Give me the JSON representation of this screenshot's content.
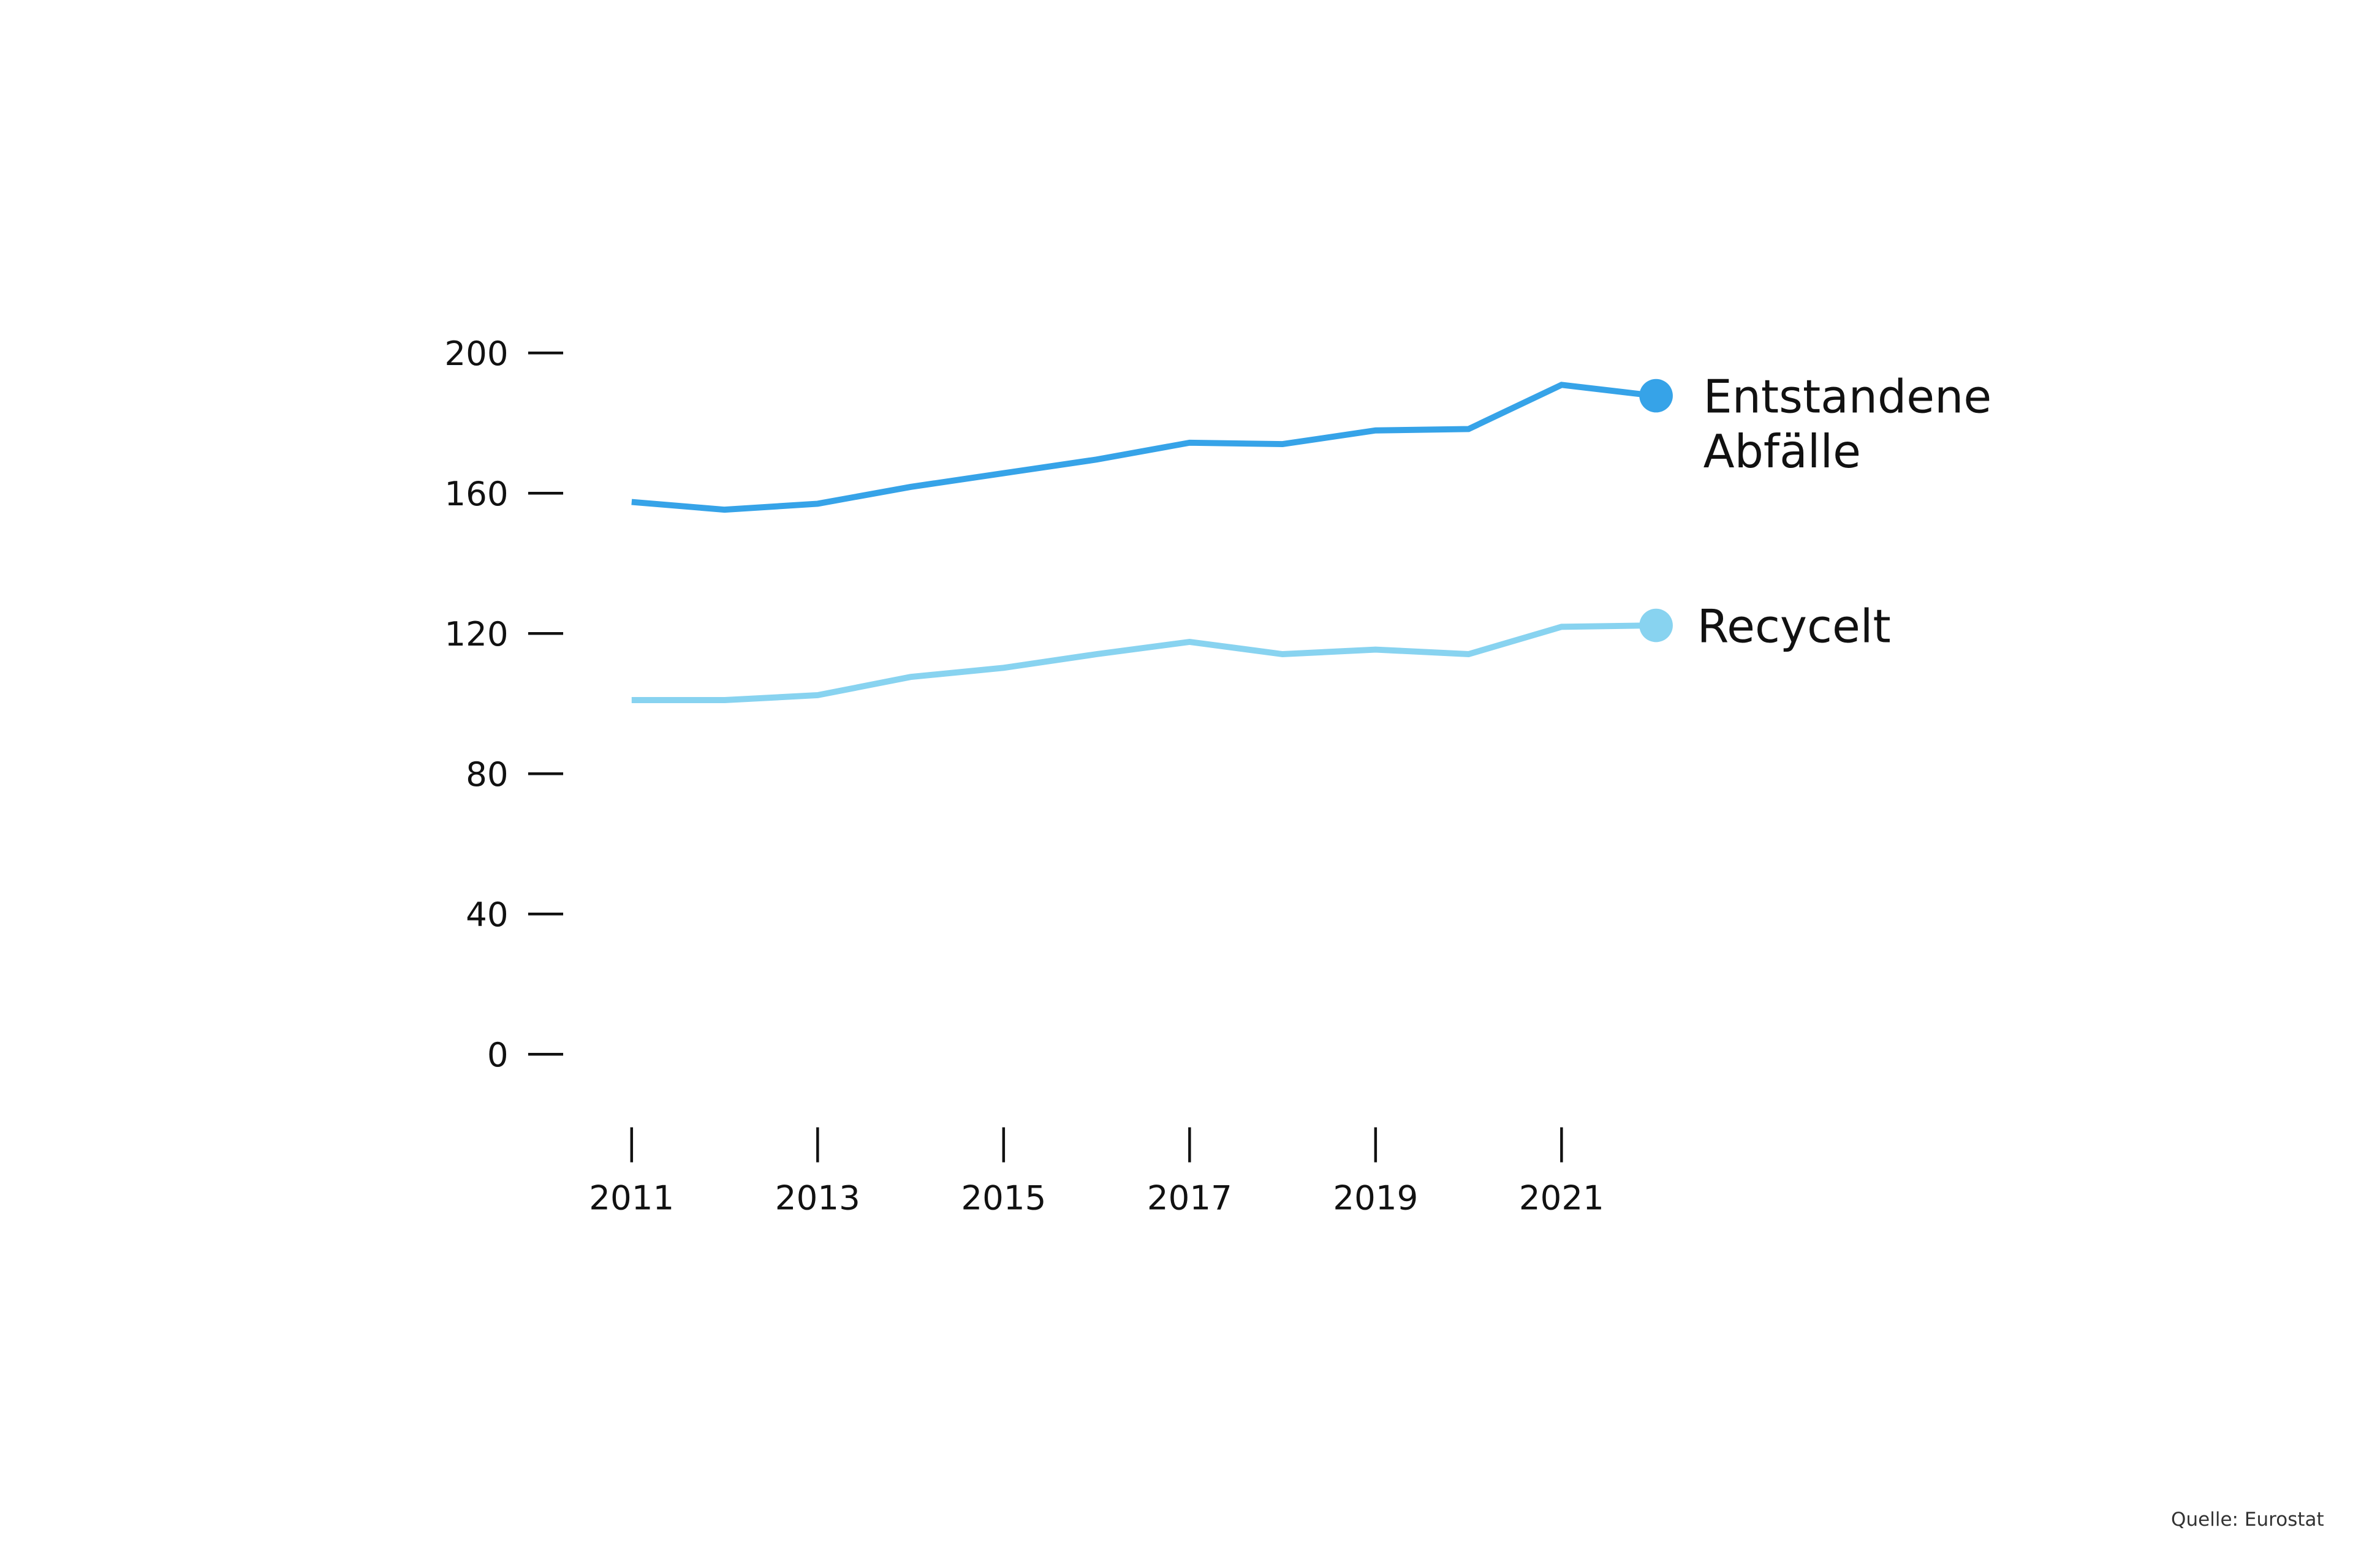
{
  "chart_data": {
    "type": "line",
    "title": "",
    "xlabel": "",
    "ylabel": "",
    "x": [
      2011,
      2012,
      2013,
      2014,
      2015,
      2016,
      2017,
      2018,
      2019,
      2020,
      2021,
      2022
    ],
    "x_tick_labels": [
      "2011",
      "2013",
      "2015",
      "2017",
      "2019",
      "2021"
    ],
    "y_tick_labels": [
      "200",
      "160",
      "120",
      "80",
      "40",
      "0"
    ],
    "ylim": [
      0,
      200
    ],
    "grid": false,
    "legend_placement": "right, at line ends",
    "series": [
      {
        "name_lines": [
          "Entstandene",
          "Abfälle"
        ],
        "color": "#36A3E8",
        "values": [
          157.5,
          155.3,
          157.0,
          161.8,
          165.7,
          169.6,
          174.4,
          174.0,
          177.9,
          178.3,
          190.9,
          187.8
        ]
      },
      {
        "name_lines": [
          "Recycelt"
        ],
        "color": "#88D3F0",
        "values": [
          101.0,
          101.0,
          102.4,
          107.6,
          110.2,
          114.1,
          117.6,
          114.1,
          115.4,
          114.1,
          121.9,
          122.3
        ]
      }
    ],
    "source": "Quelle: Eurostat"
  }
}
